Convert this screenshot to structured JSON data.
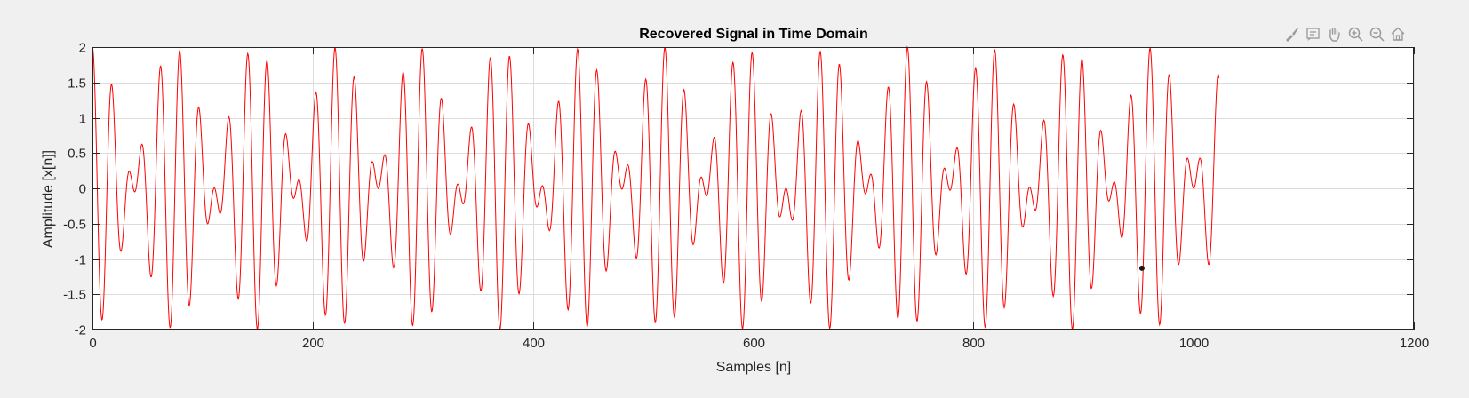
{
  "toolbar": {
    "items": [
      {
        "name": "brush-icon"
      },
      {
        "name": "data-tip-icon"
      },
      {
        "name": "pan-hand-icon"
      },
      {
        "name": "zoom-in-icon"
      },
      {
        "name": "zoom-out-icon"
      },
      {
        "name": "home-icon"
      }
    ]
  },
  "colors": {
    "line": "#ff0000",
    "axes_bg": "#ffffff",
    "figure_bg": "#f0f0f0",
    "grid": "#dcdcdc",
    "axis": "#262626",
    "marker": "#1a1a1a"
  },
  "chart_data": {
    "type": "line",
    "title": "Recovered Signal in Time Domain",
    "xlabel": "Samples [n]",
    "ylabel": "Amplitude [x[n]]",
    "xlim": [
      0,
      1200
    ],
    "ylim": [
      -2,
      2
    ],
    "xticks": [
      0,
      200,
      400,
      600,
      800,
      1000,
      1200
    ],
    "xtick_labels": [
      "0",
      "200",
      "400",
      "600",
      "800",
      "1000",
      "1200"
    ],
    "yticks": [
      -2,
      -1.5,
      -1,
      -0.5,
      0,
      0.5,
      1,
      1.5,
      2
    ],
    "ytick_labels": [
      "-2",
      "-1.5",
      "-1",
      "-0.5",
      "0",
      "0.5",
      "1",
      "1.5",
      "2"
    ],
    "grid": true,
    "series": [
      {
        "name": "",
        "n_start": 0,
        "n_end": 1023,
        "components": [
          {
            "amplitude": 1,
            "cycles_per_sample": 0.05
          },
          {
            "amplitude": 1,
            "cycles_per_sample": 0.0635
          }
        ]
      }
    ],
    "marker": {
      "x": 953,
      "y": -1.13
    }
  }
}
